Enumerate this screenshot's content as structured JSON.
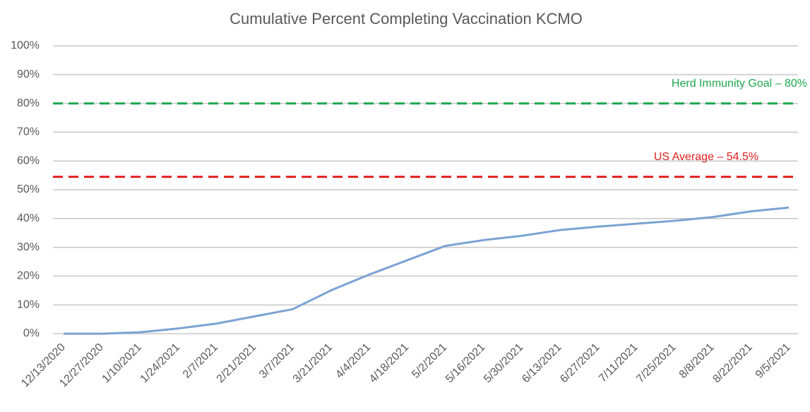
{
  "chart_data": {
    "type": "line",
    "title": "Cumulative Percent Completing Vaccination KCMO",
    "categories": [
      "12/13/2020",
      "12/27/2020",
      "1/10/2021",
      "1/24/2021",
      "2/7/2021",
      "2/21/2021",
      "3/7/2021",
      "3/21/2021",
      "4/4/2021",
      "4/18/2021",
      "5/2/2021",
      "5/16/2021",
      "5/30/2021",
      "6/13/2021",
      "6/27/2021",
      "7/11/2021",
      "7/25/2021",
      "8/8/2021",
      "8/22/2021",
      "9/5/2021"
    ],
    "series": [
      {
        "name": "Cumulative Percent",
        "color": "#7ba3d3",
        "values": [
          0,
          0,
          0.5,
          1.8,
          3.5,
          6,
          8.5,
          15,
          20.5,
          25.5,
          30.5,
          32.5,
          34,
          36,
          37.2,
          38.2,
          39.2,
          40.5,
          42.5,
          43.8
        ]
      }
    ],
    "ylim": [
      0,
      100
    ],
    "yticks": [
      {
        "value": 0,
        "label": "0%"
      },
      {
        "value": 10,
        "label": "10%"
      },
      {
        "value": 20,
        "label": "20%"
      },
      {
        "value": 30,
        "label": "30%"
      },
      {
        "value": 40,
        "label": "40%"
      },
      {
        "value": 50,
        "label": "50%"
      },
      {
        "value": 60,
        "label": "60%"
      },
      {
        "value": 70,
        "label": "70%"
      },
      {
        "value": 80,
        "label": "80%"
      },
      {
        "value": 90,
        "label": "90%"
      },
      {
        "value": 100,
        "label": "100%"
      }
    ],
    "grid": true,
    "reference_lines": [
      {
        "label": "Herd Immunity Goal – 80%",
        "value": 80,
        "color": "#1fa84f"
      },
      {
        "label": "US Average – 54.5%",
        "value": 54.5,
        "color": "#e02020"
      }
    ]
  }
}
